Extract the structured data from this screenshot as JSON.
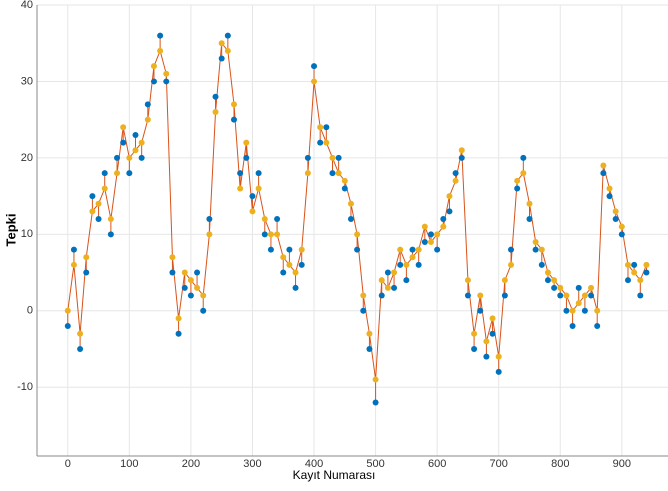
{
  "chart_data": {
    "type": "scatter",
    "x_label": "Kayıt Numarası",
    "y_label": "Tepki",
    "x": [
      0,
      10,
      20,
      30,
      40,
      50,
      60,
      70,
      80,
      90,
      100,
      110,
      120,
      130,
      140,
      150,
      160,
      170,
      180,
      190,
      200,
      210,
      220,
      230,
      240,
      250,
      260,
      270,
      280,
      290,
      300,
      310,
      320,
      330,
      340,
      350,
      360,
      370,
      380,
      390,
      400,
      410,
      420,
      430,
      440,
      450,
      460,
      470,
      480,
      490,
      500,
      510,
      520,
      530,
      540,
      550,
      560,
      570,
      580,
      590,
      600,
      610,
      620,
      630,
      640,
      650,
      660,
      670,
      680,
      690,
      700,
      710,
      720,
      730,
      740,
      750,
      760,
      770,
      780,
      790,
      800,
      810,
      820,
      830,
      840,
      850,
      860,
      870,
      880,
      890,
      900,
      910,
      920,
      930,
      940
    ],
    "series": [
      {
        "color": "#0072bd",
        "values": [
          -2,
          8,
          -5,
          5,
          15,
          12,
          18,
          10,
          20,
          22,
          18,
          23,
          20,
          27,
          30,
          36,
          30,
          5,
          -3,
          3,
          2,
          5,
          0,
          12,
          28,
          33,
          36,
          25,
          18,
          20,
          15,
          18,
          10,
          8,
          12,
          5,
          8,
          3,
          6,
          20,
          32,
          22,
          24,
          18,
          20,
          16,
          12,
          8,
          0,
          -5,
          -12,
          2,
          5,
          3,
          6,
          4,
          8,
          6,
          9,
          10,
          8,
          12,
          13,
          18,
          20,
          2,
          -5,
          0,
          -6,
          -3,
          -8,
          2,
          8,
          16,
          20,
          12,
          8,
          6,
          4,
          3,
          2,
          0,
          -2,
          3,
          0,
          2,
          -2,
          18,
          15,
          12,
          10,
          4,
          6,
          2,
          5
        ]
      },
      {
        "color": "#edb120",
        "line_color": "#d95319",
        "values": [
          0,
          6,
          -3,
          7,
          13,
          14,
          16,
          12,
          18,
          24,
          20,
          21,
          22,
          25,
          32,
          34,
          31,
          7,
          -1,
          5,
          4,
          3,
          2,
          10,
          26,
          35,
          34,
          27,
          16,
          22,
          13,
          16,
          12,
          10,
          10,
          7,
          6,
          5,
          8,
          18,
          30,
          24,
          22,
          20,
          18,
          17,
          14,
          10,
          2,
          -3,
          -9,
          4,
          3,
          5,
          8,
          6,
          7,
          8,
          11,
          9,
          10,
          11,
          15,
          17,
          21,
          4,
          -3,
          2,
          -4,
          -1,
          -6,
          4,
          6,
          17,
          18,
          14,
          9,
          8,
          5,
          4,
          3,
          2,
          0,
          1,
          2,
          3,
          0,
          19,
          16,
          13,
          11,
          6,
          5,
          4,
          6
        ]
      }
    ],
    "xlim": [
      -50,
      975
    ],
    "ylim": [
      -19,
      40
    ],
    "xticks": [
      0,
      100,
      200,
      300,
      400,
      500,
      600,
      700,
      800,
      900
    ],
    "yticks": [
      -10,
      0,
      10,
      20,
      30,
      40
    ],
    "grid": true
  }
}
